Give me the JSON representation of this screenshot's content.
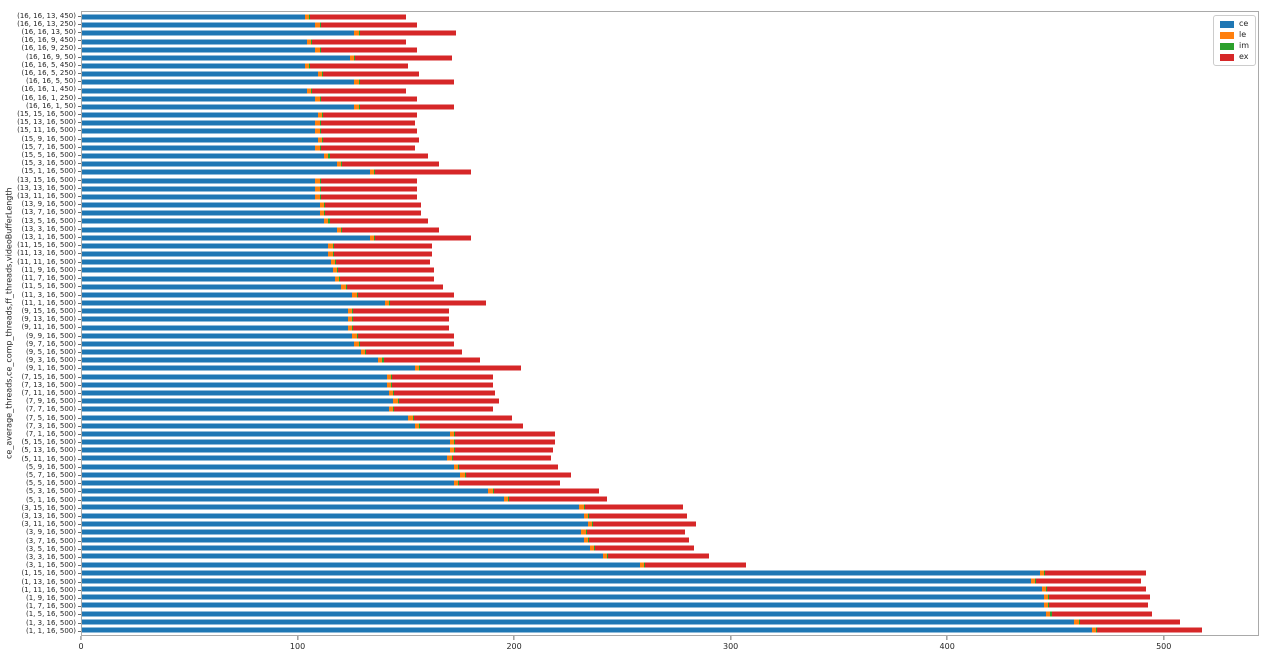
{
  "figure": {
    "background": "#ffffff",
    "frame_color": "#a9a9a9"
  },
  "chart_data": {
    "type": "bar",
    "orientation": "horizontal",
    "stacked": true,
    "title": "",
    "xlabel": "",
    "ylabel": "ce_average_threads,ce_comp_threads,ff_threads,videoBufferLength",
    "xlim": [
      0,
      544
    ],
    "x_ticks": [
      0,
      100,
      200,
      300,
      400,
      500
    ],
    "grid": false,
    "legend": {
      "position": "upper right",
      "entries": [
        {
          "label": "ce",
          "color": "#1f77b4"
        },
        {
          "label": "le",
          "color": "#ff7f0e"
        },
        {
          "label": "im",
          "color": "#2ca02c"
        },
        {
          "label": "ex",
          "color": "#d62728"
        }
      ]
    },
    "series_order": [
      "ce",
      "le",
      "im",
      "ex"
    ],
    "rows": [
      {
        "label": "(16, 16, 13, 450)",
        "ce": 103,
        "le": 2,
        "im": 0.5,
        "ex": 44.5
      },
      {
        "label": "(16, 16, 13, 250)",
        "ce": 108,
        "le": 2,
        "im": 0.5,
        "ex": 44.5
      },
      {
        "label": "(16, 16, 13, 50)",
        "ce": 126,
        "le": 2,
        "im": 0.5,
        "ex": 44.5
      },
      {
        "label": "(16, 16, 9, 450)",
        "ce": 104,
        "le": 2,
        "im": 0.5,
        "ex": 43.5
      },
      {
        "label": "(16, 16, 9, 250)",
        "ce": 108,
        "le": 2,
        "im": 0.5,
        "ex": 44.5
      },
      {
        "label": "(16, 16, 9, 50)",
        "ce": 124,
        "le": 2,
        "im": 0.5,
        "ex": 44.5
      },
      {
        "label": "(16, 16, 5, 450)",
        "ce": 103,
        "le": 2,
        "im": 0.5,
        "ex": 45.5
      },
      {
        "label": "(16, 16, 5, 250)",
        "ce": 109,
        "le": 2,
        "im": 0.5,
        "ex": 44.5
      },
      {
        "label": "(16, 16, 5, 50)",
        "ce": 126,
        "le": 2,
        "im": 0.5,
        "ex": 43.5
      },
      {
        "label": "(16, 16, 1, 450)",
        "ce": 104,
        "le": 2,
        "im": 0.5,
        "ex": 43.5
      },
      {
        "label": "(16, 16, 1, 250)",
        "ce": 108,
        "le": 2,
        "im": 0.5,
        "ex": 44.5
      },
      {
        "label": "(16, 16, 1, 50)",
        "ce": 126,
        "le": 2,
        "im": 0.5,
        "ex": 43.5
      },
      {
        "label": "(15, 15, 16, 500)",
        "ce": 109,
        "le": 2,
        "im": 0.5,
        "ex": 43.5
      },
      {
        "label": "(15, 13, 16, 500)",
        "ce": 108,
        "le": 2,
        "im": 0.5,
        "ex": 43.5
      },
      {
        "label": "(15, 11, 16, 500)",
        "ce": 108,
        "le": 2,
        "im": 0.5,
        "ex": 44.5
      },
      {
        "label": "(15, 9, 16, 500)",
        "ce": 109,
        "le": 2,
        "im": 0.5,
        "ex": 44.5
      },
      {
        "label": "(15, 7, 16, 500)",
        "ce": 108,
        "le": 2,
        "im": 0.5,
        "ex": 43.5
      },
      {
        "label": "(15, 5, 16, 500)",
        "ce": 112,
        "le": 2,
        "im": 0.5,
        "ex": 45.5
      },
      {
        "label": "(15, 3, 16, 500)",
        "ce": 118,
        "le": 2,
        "im": 0.5,
        "ex": 44.5
      },
      {
        "label": "(15, 1, 16, 500)",
        "ce": 133,
        "le": 2,
        "im": 0.5,
        "ex": 44.5
      },
      {
        "label": "(13, 15, 16, 500)",
        "ce": 108,
        "le": 2,
        "im": 0.5,
        "ex": 44.5
      },
      {
        "label": "(13, 13, 16, 500)",
        "ce": 108,
        "le": 2,
        "im": 0.5,
        "ex": 44.5
      },
      {
        "label": "(13, 11, 16, 500)",
        "ce": 108,
        "le": 2,
        "im": 0.5,
        "ex": 44.5
      },
      {
        "label": "(13, 9, 16, 500)",
        "ce": 110,
        "le": 2,
        "im": 0.5,
        "ex": 44.5
      },
      {
        "label": "(13, 7, 16, 500)",
        "ce": 110,
        "le": 2,
        "im": 0.5,
        "ex": 44.5
      },
      {
        "label": "(13, 5, 16, 500)",
        "ce": 112,
        "le": 2,
        "im": 0.5,
        "ex": 45.5
      },
      {
        "label": "(13, 3, 16, 500)",
        "ce": 118,
        "le": 2,
        "im": 0.5,
        "ex": 44.5
      },
      {
        "label": "(13, 1, 16, 500)",
        "ce": 133,
        "le": 2,
        "im": 0.5,
        "ex": 44.5
      },
      {
        "label": "(11, 15, 16, 500)",
        "ce": 114,
        "le": 2,
        "im": 0.5,
        "ex": 45.5
      },
      {
        "label": "(11, 13, 16, 500)",
        "ce": 114,
        "le": 2,
        "im": 0.5,
        "ex": 45.5
      },
      {
        "label": "(11, 11, 16, 500)",
        "ce": 115,
        "le": 2,
        "im": 0.5,
        "ex": 43.5
      },
      {
        "label": "(11, 9, 16, 500)",
        "ce": 116,
        "le": 2,
        "im": 0.5,
        "ex": 44.5
      },
      {
        "label": "(11, 7, 16, 500)",
        "ce": 117,
        "le": 2,
        "im": 0.5,
        "ex": 43.5
      },
      {
        "label": "(11, 5, 16, 500)",
        "ce": 120,
        "le": 2,
        "im": 0.5,
        "ex": 44.5
      },
      {
        "label": "(11, 3, 16, 500)",
        "ce": 125,
        "le": 2,
        "im": 0.5,
        "ex": 44.5
      },
      {
        "label": "(11, 1, 16, 500)",
        "ce": 140,
        "le": 2,
        "im": 0.5,
        "ex": 44.5
      },
      {
        "label": "(9, 15, 16, 500)",
        "ce": 123,
        "le": 2,
        "im": 0.5,
        "ex": 44.5
      },
      {
        "label": "(9, 13, 16, 500)",
        "ce": 123,
        "le": 2,
        "im": 0.5,
        "ex": 44.5
      },
      {
        "label": "(9, 11, 16, 500)",
        "ce": 123,
        "le": 2,
        "im": 0.5,
        "ex": 44.5
      },
      {
        "label": "(9, 9, 16, 500)",
        "ce": 125,
        "le": 2,
        "im": 0.5,
        "ex": 44.5
      },
      {
        "label": "(9, 7, 16, 500)",
        "ce": 126,
        "le": 2,
        "im": 0.5,
        "ex": 43.5
      },
      {
        "label": "(9, 5, 16, 500)",
        "ce": 129,
        "le": 2,
        "im": 0.5,
        "ex": 44.5
      },
      {
        "label": "(9, 3, 16, 500)",
        "ce": 137,
        "le": 2,
        "im": 0.5,
        "ex": 44.5
      },
      {
        "label": "(9, 1, 16, 500)",
        "ce": 154,
        "le": 2,
        "im": 0.5,
        "ex": 46.5
      },
      {
        "label": "(7, 15, 16, 500)",
        "ce": 141,
        "le": 2,
        "im": 0.5,
        "ex": 46.5
      },
      {
        "label": "(7, 13, 16, 500)",
        "ce": 141,
        "le": 2,
        "im": 0.5,
        "ex": 46.5
      },
      {
        "label": "(7, 11, 16, 500)",
        "ce": 142,
        "le": 2,
        "im": 0.5,
        "ex": 46.5
      },
      {
        "label": "(7, 9, 16, 500)",
        "ce": 144,
        "le": 2,
        "im": 0.5,
        "ex": 46.5
      },
      {
        "label": "(7, 7, 16, 500)",
        "ce": 142,
        "le": 2,
        "im": 0.5,
        "ex": 45.5
      },
      {
        "label": "(7, 5, 16, 500)",
        "ce": 151,
        "le": 2,
        "im": 0.5,
        "ex": 45.5
      },
      {
        "label": "(7, 3, 16, 500)",
        "ce": 154,
        "le": 2,
        "im": 0.5,
        "ex": 47.5
      },
      {
        "label": "(7, 1, 16, 500)",
        "ce": 170,
        "le": 2,
        "im": 0.5,
        "ex": 46.5
      },
      {
        "label": "(5, 15, 16, 500)",
        "ce": 170,
        "le": 2,
        "im": 0.5,
        "ex": 46.5
      },
      {
        "label": "(5, 13, 16, 500)",
        "ce": 170,
        "le": 2,
        "im": 0.5,
        "ex": 45.5
      },
      {
        "label": "(5, 11, 16, 500)",
        "ce": 169,
        "le": 2,
        "im": 0.5,
        "ex": 45.5
      },
      {
        "label": "(5, 9, 16, 500)",
        "ce": 172,
        "le": 2,
        "im": 0.5,
        "ex": 45.5
      },
      {
        "label": "(5, 7, 16, 500)",
        "ce": 175,
        "le": 2,
        "im": 0.5,
        "ex": 48.5
      },
      {
        "label": "(5, 5, 16, 500)",
        "ce": 172,
        "le": 2,
        "im": 0.5,
        "ex": 46.5
      },
      {
        "label": "(5, 3, 16, 500)",
        "ce": 188,
        "le": 2,
        "im": 0.5,
        "ex": 48.5
      },
      {
        "label": "(5, 1, 16, 500)",
        "ce": 195,
        "le": 2,
        "im": 0.5,
        "ex": 45.5
      },
      {
        "label": "(3, 15, 16, 500)",
        "ce": 230,
        "le": 2,
        "im": 0.5,
        "ex": 45.5
      },
      {
        "label": "(3, 13, 16, 500)",
        "ce": 232,
        "le": 2,
        "im": 0.5,
        "ex": 45.5
      },
      {
        "label": "(3, 11, 16, 500)",
        "ce": 234,
        "le": 2,
        "im": 0.5,
        "ex": 47.5
      },
      {
        "label": "(3, 9, 16, 500)",
        "ce": 231,
        "le": 2,
        "im": 0.5,
        "ex": 45.5
      },
      {
        "label": "(3, 7, 16, 500)",
        "ce": 232,
        "le": 2,
        "im": 0.5,
        "ex": 46.5
      },
      {
        "label": "(3, 5, 16, 500)",
        "ce": 235,
        "le": 2,
        "im": 0.5,
        "ex": 45.5
      },
      {
        "label": "(3, 3, 16, 500)",
        "ce": 241,
        "le": 2,
        "im": 0.5,
        "ex": 46.5
      },
      {
        "label": "(3, 1, 16, 500)",
        "ce": 258,
        "le": 2,
        "im": 0.5,
        "ex": 46.5
      },
      {
        "label": "(1, 15, 16, 500)",
        "ce": 443,
        "le": 2,
        "im": 0.5,
        "ex": 46.5
      },
      {
        "label": "(1, 13, 16, 500)",
        "ce": 439,
        "le": 2,
        "im": 0.5,
        "ex": 48.5
      },
      {
        "label": "(1, 11, 16, 500)",
        "ce": 444,
        "le": 2,
        "im": 0.5,
        "ex": 45.5
      },
      {
        "label": "(1, 9, 16, 500)",
        "ce": 445,
        "le": 2,
        "im": 0.5,
        "ex": 46.5
      },
      {
        "label": "(1, 7, 16, 500)",
        "ce": 445,
        "le": 2,
        "im": 0.5,
        "ex": 45.5
      },
      {
        "label": "(1, 5, 16, 500)",
        "ce": 446,
        "le": 2,
        "im": 0.5,
        "ex": 46.5
      },
      {
        "label": "(1, 3, 16, 500)",
        "ce": 459,
        "le": 2,
        "im": 0.5,
        "ex": 46.5
      },
      {
        "label": "(1, 1, 16, 500)",
        "ce": 467,
        "le": 2,
        "im": 0.5,
        "ex": 48.5
      }
    ]
  }
}
